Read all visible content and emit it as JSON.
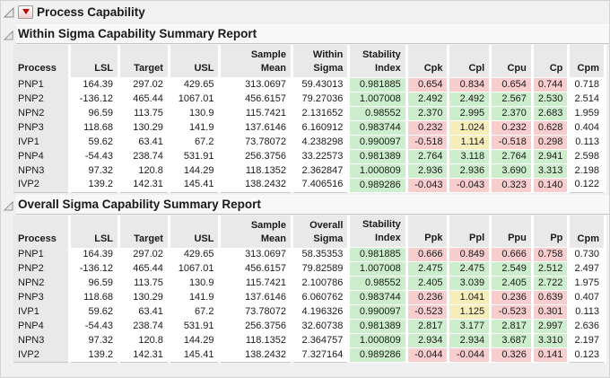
{
  "app": {
    "title": "Process Capability"
  },
  "colors": {
    "pass_green": "#cdeecd",
    "fail_pink": "#f7cdcd",
    "warn_yellow": "#f5edba",
    "header_gray": "#e9e9e9",
    "menu_triangle_red": "#c00000"
  },
  "icons": {
    "disclosure": "open-disclosure-triangle",
    "red_triangle_menu": "red-triangle-menu"
  },
  "tables": [
    {
      "title": "Within Sigma Capability Summary Report",
      "columns": [
        "Process",
        "LSL",
        "Target",
        "USL",
        "Sample Mean",
        "Within\nSigma",
        "Stability\nIndex",
        "Cpk",
        "Cpl",
        "Cpu",
        "Cp",
        "Cpm"
      ],
      "rows": [
        {
          "process": "PNP1",
          "values": [
            "164.39",
            "297.02",
            "429.65",
            "313.0697",
            "59.43013",
            "0.981885",
            "0.654",
            "0.834",
            "0.654",
            "0.744",
            "0.718"
          ],
          "flags": [
            "n",
            "n",
            "n",
            "n",
            "n",
            "g",
            "p",
            "p",
            "p",
            "p",
            "n"
          ]
        },
        {
          "process": "PNP2",
          "values": [
            "-136.12",
            "465.44",
            "1067.01",
            "456.6157",
            "79.27036",
            "1.007008",
            "2.492",
            "2.492",
            "2.567",
            "2.530",
            "2.514"
          ],
          "flags": [
            "n",
            "n",
            "n",
            "n",
            "n",
            "g",
            "g",
            "g",
            "g",
            "g",
            "n"
          ]
        },
        {
          "process": "NPN2",
          "values": [
            "96.59",
            "113.75",
            "130.9",
            "115.7421",
            "2.131652",
            "0.98552",
            "2.370",
            "2.995",
            "2.370",
            "2.683",
            "1.959"
          ],
          "flags": [
            "n",
            "n",
            "n",
            "n",
            "n",
            "g",
            "g",
            "g",
            "g",
            "g",
            "n"
          ]
        },
        {
          "process": "PNP3",
          "values": [
            "118.68",
            "130.29",
            "141.9",
            "137.6146",
            "6.160912",
            "0.983744",
            "0.232",
            "1.024",
            "0.232",
            "0.628",
            "0.404"
          ],
          "flags": [
            "n",
            "n",
            "n",
            "n",
            "n",
            "g",
            "p",
            "y",
            "p",
            "p",
            "n"
          ]
        },
        {
          "process": "IVP1",
          "values": [
            "59.62",
            "63.41",
            "67.2",
            "73.78072",
            "4.238298",
            "0.990097",
            "-0.518",
            "1.114",
            "-0.518",
            "0.298",
            "0.113"
          ],
          "flags": [
            "n",
            "n",
            "n",
            "n",
            "n",
            "g",
            "p",
            "y",
            "p",
            "p",
            "n"
          ]
        },
        {
          "process": "PNP4",
          "values": [
            "-54.43",
            "238.74",
            "531.91",
            "256.3756",
            "33.22573",
            "0.981389",
            "2.764",
            "3.118",
            "2.764",
            "2.941",
            "2.598"
          ],
          "flags": [
            "n",
            "n",
            "n",
            "n",
            "n",
            "g",
            "g",
            "g",
            "g",
            "g",
            "n"
          ]
        },
        {
          "process": "NPN3",
          "values": [
            "97.32",
            "120.8",
            "144.29",
            "118.1352",
            "2.362847",
            "1.000809",
            "2.936",
            "2.936",
            "3.690",
            "3.313",
            "2.198"
          ],
          "flags": [
            "n",
            "n",
            "n",
            "n",
            "n",
            "g",
            "g",
            "g",
            "g",
            "g",
            "n"
          ]
        },
        {
          "process": "IVP2",
          "values": [
            "139.2",
            "142.31",
            "145.41",
            "138.2432",
            "7.406516",
            "0.989286",
            "-0.043",
            "-0.043",
            "0.323",
            "0.140",
            "0.122"
          ],
          "flags": [
            "n",
            "n",
            "n",
            "n",
            "n",
            "g",
            "p",
            "p",
            "p",
            "p",
            "n"
          ]
        }
      ]
    },
    {
      "title": "Overall Sigma Capability Summary Report",
      "columns": [
        "Process",
        "LSL",
        "Target",
        "USL",
        "Sample Mean",
        "Overall\nSigma",
        "Stability\nIndex",
        "Ppk",
        "Ppl",
        "Ppu",
        "Pp",
        "Cpm"
      ],
      "rows": [
        {
          "process": "PNP1",
          "values": [
            "164.39",
            "297.02",
            "429.65",
            "313.0697",
            "58.35353",
            "0.981885",
            "0.666",
            "0.849",
            "0.666",
            "0.758",
            "0.730"
          ],
          "flags": [
            "n",
            "n",
            "n",
            "n",
            "n",
            "g",
            "p",
            "p",
            "p",
            "p",
            "n"
          ]
        },
        {
          "process": "PNP2",
          "values": [
            "-136.12",
            "465.44",
            "1067.01",
            "456.6157",
            "79.82589",
            "1.007008",
            "2.475",
            "2.475",
            "2.549",
            "2.512",
            "2.497"
          ],
          "flags": [
            "n",
            "n",
            "n",
            "n",
            "n",
            "g",
            "g",
            "g",
            "g",
            "g",
            "n"
          ]
        },
        {
          "process": "NPN2",
          "values": [
            "96.59",
            "113.75",
            "130.9",
            "115.7421",
            "2.100786",
            "0.98552",
            "2.405",
            "3.039",
            "2.405",
            "2.722",
            "1.975"
          ],
          "flags": [
            "n",
            "n",
            "n",
            "n",
            "n",
            "g",
            "g",
            "g",
            "g",
            "g",
            "n"
          ]
        },
        {
          "process": "PNP3",
          "values": [
            "118.68",
            "130.29",
            "141.9",
            "137.6146",
            "6.060762",
            "0.983744",
            "0.236",
            "1.041",
            "0.236",
            "0.639",
            "0.407"
          ],
          "flags": [
            "n",
            "n",
            "n",
            "n",
            "n",
            "g",
            "p",
            "y",
            "p",
            "p",
            "n"
          ]
        },
        {
          "process": "IVP1",
          "values": [
            "59.62",
            "63.41",
            "67.2",
            "73.78072",
            "4.196326",
            "0.990097",
            "-0.523",
            "1.125",
            "-0.523",
            "0.301",
            "0.113"
          ],
          "flags": [
            "n",
            "n",
            "n",
            "n",
            "n",
            "g",
            "p",
            "y",
            "p",
            "p",
            "n"
          ]
        },
        {
          "process": "PNP4",
          "values": [
            "-54.43",
            "238.74",
            "531.91",
            "256.3756",
            "32.60738",
            "0.981389",
            "2.817",
            "3.177",
            "2.817",
            "2.997",
            "2.636"
          ],
          "flags": [
            "n",
            "n",
            "n",
            "n",
            "n",
            "g",
            "g",
            "g",
            "g",
            "g",
            "n"
          ]
        },
        {
          "process": "NPN3",
          "values": [
            "97.32",
            "120.8",
            "144.29",
            "118.1352",
            "2.364757",
            "1.000809",
            "2.934",
            "2.934",
            "3.687",
            "3.310",
            "2.197"
          ],
          "flags": [
            "n",
            "n",
            "n",
            "n",
            "n",
            "g",
            "g",
            "g",
            "g",
            "g",
            "n"
          ]
        },
        {
          "process": "IVP2",
          "values": [
            "139.2",
            "142.31",
            "145.41",
            "138.2432",
            "7.327164",
            "0.989286",
            "-0.044",
            "-0.044",
            "0.326",
            "0.141",
            "0.123"
          ],
          "flags": [
            "n",
            "n",
            "n",
            "n",
            "n",
            "g",
            "p",
            "p",
            "p",
            "p",
            "n"
          ]
        }
      ]
    }
  ]
}
